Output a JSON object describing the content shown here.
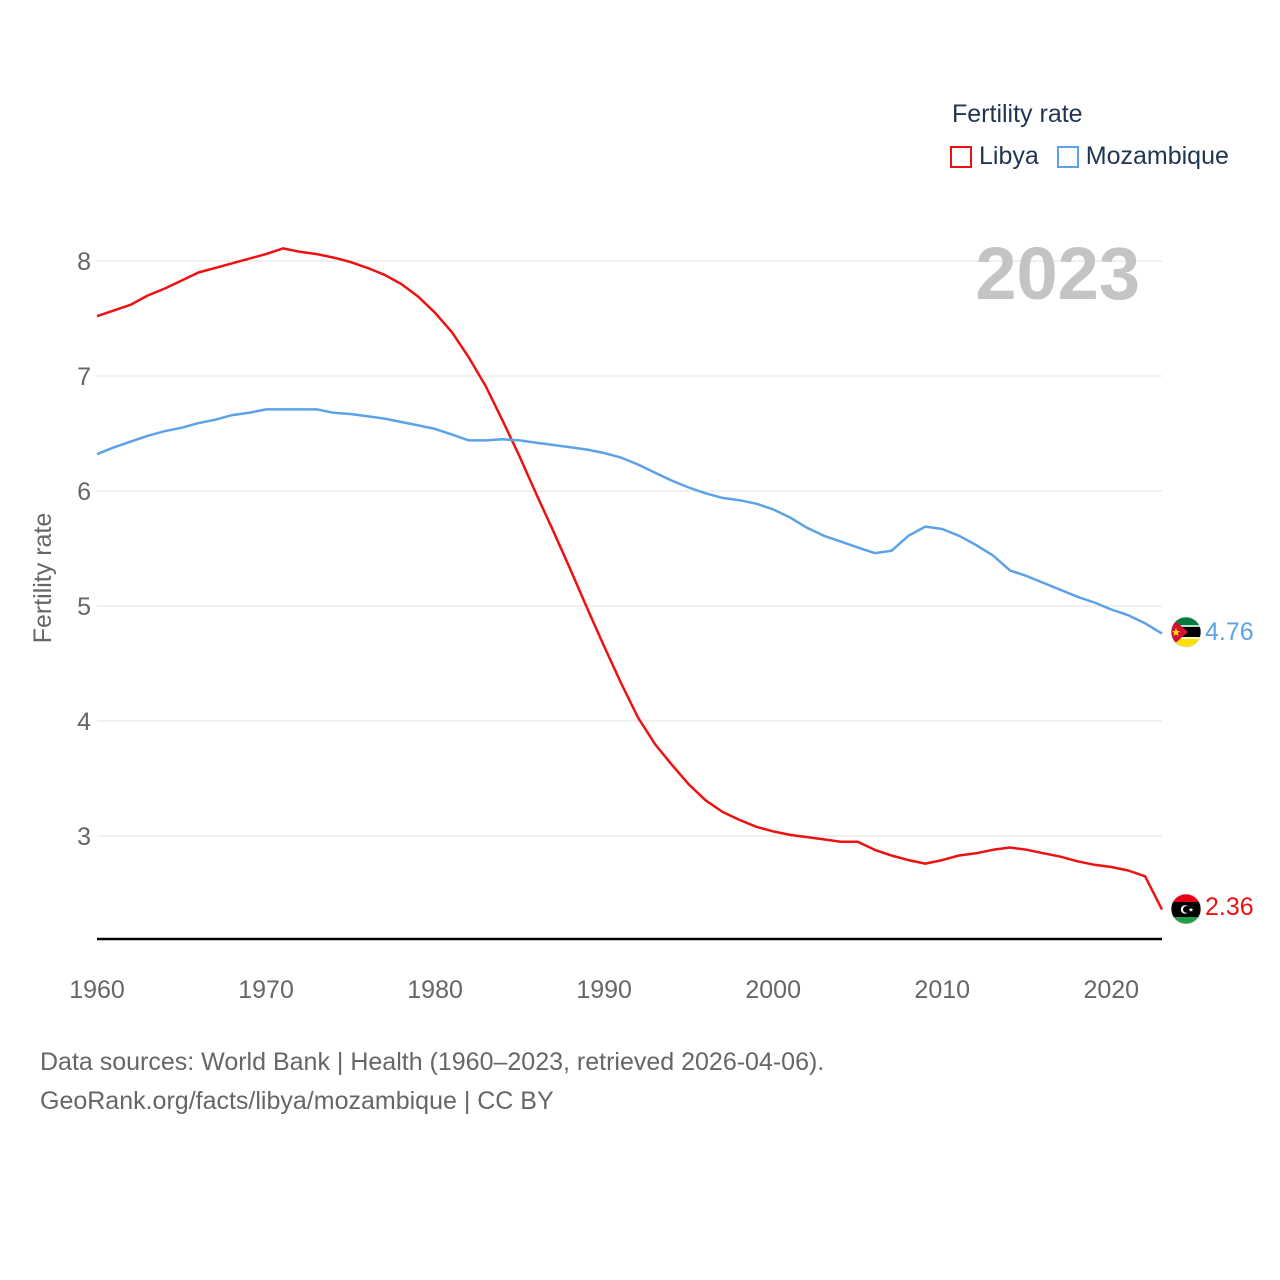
{
  "legend": {
    "title": "Fertility rate",
    "items": [
      {
        "label": "Libya",
        "color": "#ee1111"
      },
      {
        "label": "Mozambique",
        "color": "#5ba3e6"
      }
    ]
  },
  "source": {
    "line1": "Data sources: World Bank | Health (1960–2023, retrieved 2026-04-06).",
    "line2": "GeoRank.org/facts/libya/mozambique | CC BY"
  },
  "chart_data": {
    "type": "line",
    "title": "Fertility rate",
    "year_label": "2023",
    "xlabel": "",
    "ylabel": "Fertility rate",
    "xlim": [
      1960,
      2023
    ],
    "ylim": [
      2.1,
      8.3
    ],
    "x_ticks": [
      1960,
      1970,
      1980,
      1990,
      2000,
      2010,
      2020
    ],
    "y_ticks": [
      3,
      4,
      5,
      6,
      7,
      8
    ],
    "grid": true,
    "legend_position": "top-right",
    "x": [
      1960,
      1961,
      1962,
      1963,
      1964,
      1965,
      1966,
      1967,
      1968,
      1969,
      1970,
      1971,
      1972,
      1973,
      1974,
      1975,
      1976,
      1977,
      1978,
      1979,
      1980,
      1981,
      1982,
      1983,
      1984,
      1985,
      1986,
      1987,
      1988,
      1989,
      1990,
      1991,
      1992,
      1993,
      1994,
      1995,
      1996,
      1997,
      1998,
      1999,
      2000,
      2001,
      2002,
      2003,
      2004,
      2005,
      2006,
      2007,
      2008,
      2009,
      2010,
      2011,
      2012,
      2013,
      2014,
      2015,
      2016,
      2017,
      2018,
      2019,
      2020,
      2021,
      2022,
      2023
    ],
    "series": [
      {
        "name": "Libya",
        "color": "#ee1111",
        "end_label": "2.36",
        "values": [
          7.52,
          7.57,
          7.62,
          7.7,
          7.76,
          7.83,
          7.9,
          7.94,
          7.98,
          8.02,
          8.06,
          8.11,
          8.08,
          8.06,
          8.03,
          7.99,
          7.94,
          7.88,
          7.8,
          7.69,
          7.55,
          7.38,
          7.16,
          6.91,
          6.61,
          6.3,
          5.97,
          5.65,
          5.32,
          4.98,
          4.65,
          4.33,
          4.03,
          3.8,
          3.62,
          3.45,
          3.31,
          3.21,
          3.14,
          3.08,
          3.04,
          3.01,
          2.99,
          2.97,
          2.95,
          2.95,
          2.88,
          2.83,
          2.79,
          2.76,
          2.79,
          2.83,
          2.85,
          2.88,
          2.9,
          2.88,
          2.85,
          2.82,
          2.78,
          2.75,
          2.73,
          2.7,
          2.65,
          2.36
        ]
      },
      {
        "name": "Mozambique",
        "color": "#5ba3e6",
        "end_label": "4.76",
        "values": [
          6.32,
          6.38,
          6.43,
          6.48,
          6.52,
          6.55,
          6.59,
          6.62,
          6.66,
          6.68,
          6.71,
          6.71,
          6.71,
          6.71,
          6.68,
          6.67,
          6.65,
          6.63,
          6.6,
          6.57,
          6.54,
          6.49,
          6.44,
          6.44,
          6.45,
          6.44,
          6.42,
          6.4,
          6.38,
          6.36,
          6.33,
          6.29,
          6.23,
          6.16,
          6.09,
          6.03,
          5.98,
          5.94,
          5.92,
          5.89,
          5.84,
          5.77,
          5.68,
          5.61,
          5.56,
          5.51,
          5.46,
          5.48,
          5.61,
          5.69,
          5.67,
          5.61,
          5.53,
          5.44,
          5.31,
          5.26,
          5.2,
          5.14,
          5.08,
          5.03,
          4.97,
          4.92,
          4.85,
          4.76
        ]
      }
    ]
  }
}
